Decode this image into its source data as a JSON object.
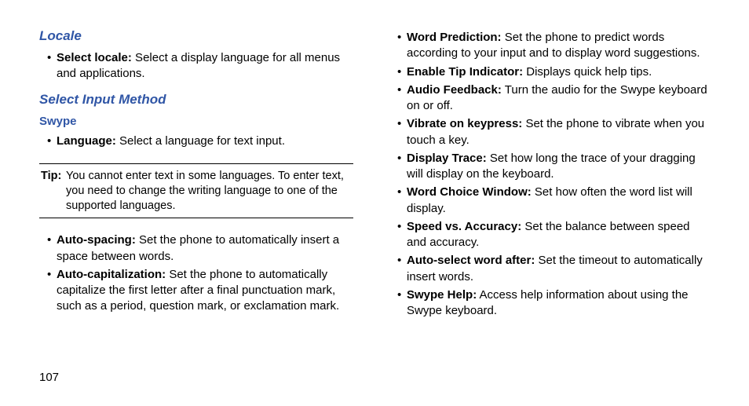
{
  "pageNumber": "107",
  "left": {
    "localeHeading": "Locale",
    "selectLocaleLabel": "Select locale:",
    "selectLocaleText": " Select a display language for all menus and applications.",
    "selectInputHeading": "Select Input Method",
    "swypeHeading": "Swype",
    "languageLabel": "Language:",
    "languageText": " Select a language for text input.",
    "tipLabel": "Tip:",
    "tipText": " You cannot enter text in some languages. To enter text, you need to change the writing language to one of the supported languages.",
    "autoSpacingLabel": "Auto-spacing:",
    "autoSpacingText": " Set the phone to automatically insert a space between words.",
    "autoCapLabel": "Auto-capitalization:",
    "autoCapText": " Set the phone to automatically capitalize the first letter after a final punctuation mark, such as a period, question mark, or exclamation mark."
  },
  "right": {
    "items": [
      {
        "label": "Word Prediction:",
        "text": " Set the phone to predict words according to your input and to display word suggestions."
      },
      {
        "label": "Enable Tip Indicator:",
        "text": " Displays quick help tips."
      },
      {
        "label": "Audio Feedback:",
        "text": " Turn the audio for the Swype keyboard on or off."
      },
      {
        "label": "Vibrate on keypress:",
        "text": " Set the phone to vibrate when you touch a key."
      },
      {
        "label": "Display Trace:",
        "text": " Set how long the trace of your dragging will display on the keyboard."
      },
      {
        "label": "Word Choice Window:",
        "text": " Set how often the word list will display."
      },
      {
        "label": "Speed vs. Accuracy:",
        "text": " Set the balance between speed and accuracy."
      },
      {
        "label": "Auto-select word after:",
        "text": " Set the timeout to automatically insert words."
      },
      {
        "label": "Swype Help:",
        "text": " Access help information about using the Swype keyboard."
      }
    ]
  },
  "style": {
    "headingColor": "#3056a6",
    "textColor": "#000000",
    "background": "#ffffff",
    "bodyFontSize": 15,
    "headingFontSize": 17,
    "tipFontSize": 14.5,
    "lineHeight": 1.35,
    "pageWidth": 954,
    "pageHeight": 517
  }
}
